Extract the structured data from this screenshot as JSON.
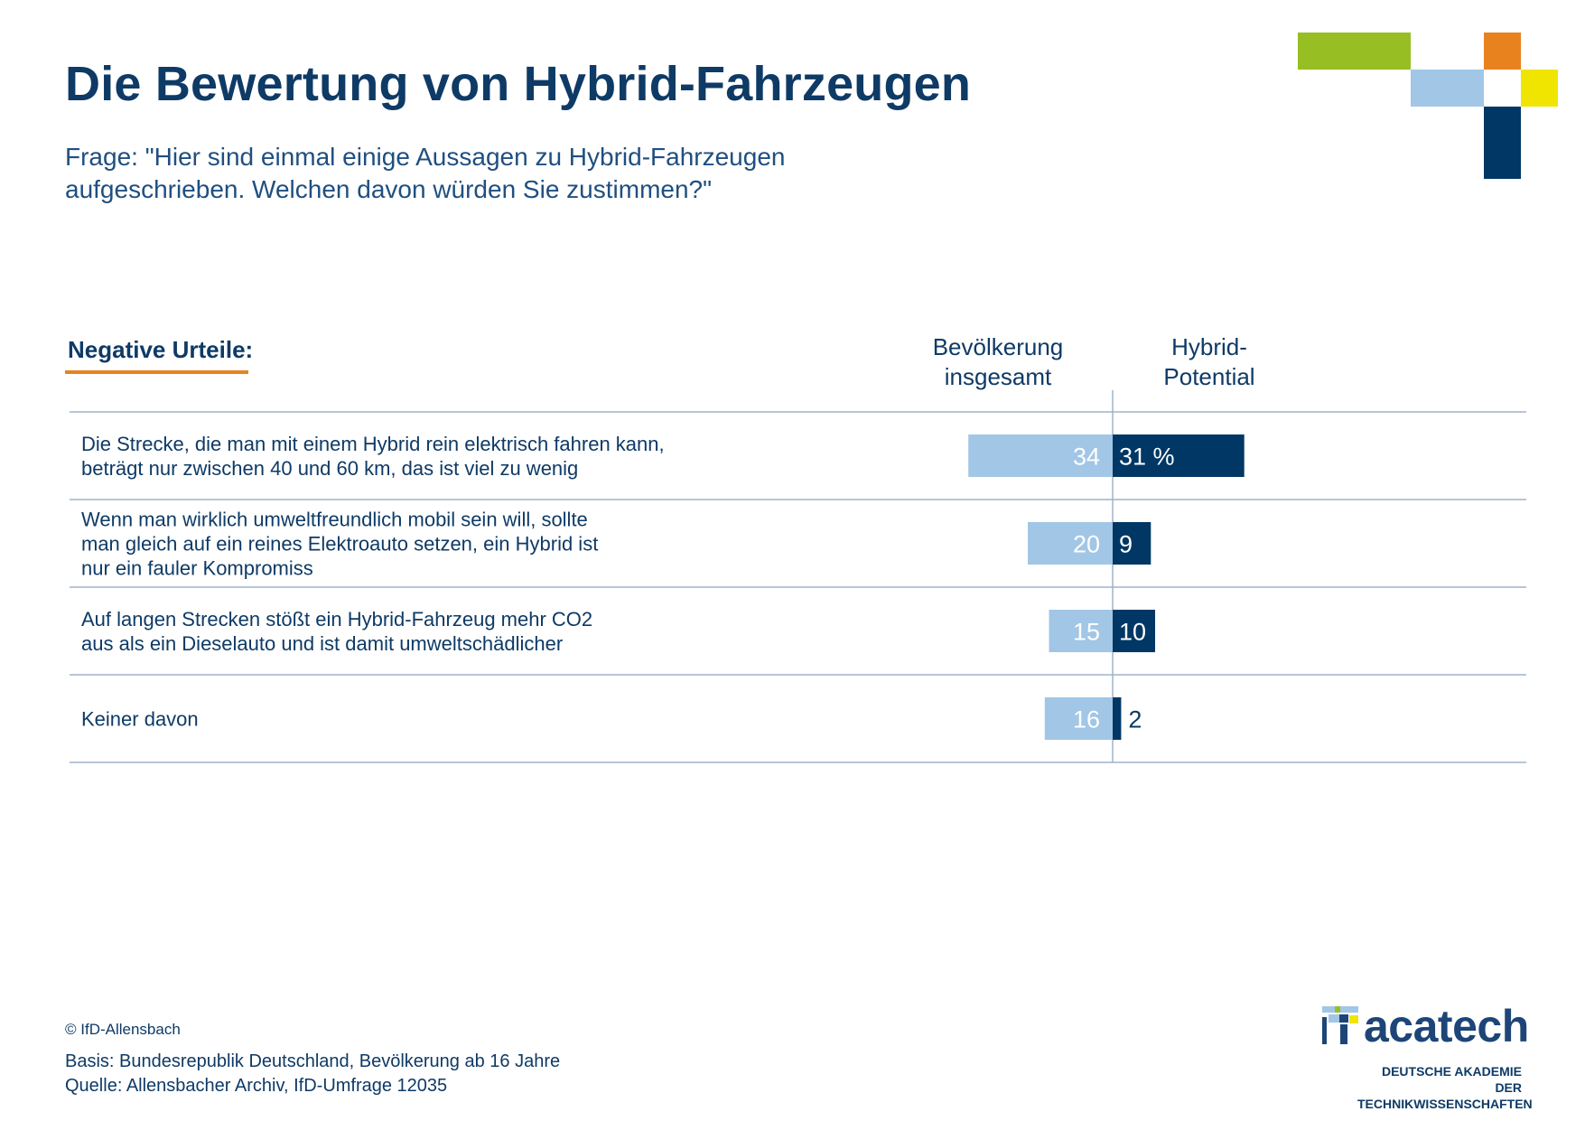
{
  "title": "Die Bewertung von Hybrid-Fahrzeugen",
  "question": "Frage: \"Hier sind einmal einige Aussagen zu Hybrid-Fahrzeugen aufgeschrieben. Welchen davon würden Sie zustimmen?\"",
  "question_lines": [
    "Frage: \"Hier sind einmal einige Aussagen zu Hybrid-Fahrzeugen",
    "aufgeschrieben. Welchen davon würden Sie zustimmen?\""
  ],
  "section_label": "Negative Urteile:",
  "column_headers": {
    "left": [
      "Bevölkerung",
      "insgesamt"
    ],
    "right": [
      "Hybrid-",
      "Potential"
    ]
  },
  "chart_data": {
    "type": "bar",
    "orientation": "horizontal-diverging",
    "unit": "%",
    "categories": [
      "Die Strecke, die man mit einem Hybrid rein elektrisch fahren kann, beträgt nur zwischen 40 und 60 km, das ist viel zu wenig",
      "Wenn man wirklich umweltfreundlich mobil sein will, sollte man gleich auf ein reines Elektroauto setzen, ein Hybrid ist nur ein fauler Kompromiss",
      "Auf langen Strecken stößt ein Hybrid-Fahrzeug mehr CO2 aus als ein Dieselauto und ist damit umweltschädlicher",
      "Keiner davon"
    ],
    "category_lines": [
      [
        "Die Strecke, die man mit einem Hybrid rein elektrisch fahren kann,",
        "beträgt nur zwischen 40 und 60 km, das ist viel zu wenig"
      ],
      [
        "Wenn man wirklich umweltfreundlich mobil sein will, sollte",
        "man gleich auf ein reines Elektroauto setzen, ein Hybrid ist",
        "nur ein fauler Kompromiss"
      ],
      [
        "Auf langen Strecken stößt ein Hybrid-Fahrzeug mehr CO2",
        "aus als ein Dieselauto und ist damit umweltschädlicher"
      ],
      [
        "Keiner davon"
      ]
    ],
    "series": [
      {
        "name": "Bevölkerung insgesamt",
        "values": [
          34,
          20,
          15,
          16
        ],
        "labels": [
          "34",
          "20",
          "15",
          "16"
        ],
        "color": "#a2c6e6"
      },
      {
        "name": "Hybrid-Potential",
        "values": [
          31,
          9,
          10,
          2
        ],
        "labels": [
          "31 %",
          "9",
          "10",
          "2"
        ],
        "color": "#003764"
      }
    ],
    "grid": true
  },
  "footer": {
    "copyright": "© IfD-Allensbach",
    "basis": "Basis: Bundesrepublik Deutschland, Bevölkerung ab 16 Jahre",
    "source": "Quelle: Allensbacher Archiv, IfD-Umfrage 12035"
  },
  "logo": {
    "name": "acatech",
    "subtitle_lines": [
      "DEUTSCHE AKADEMIE DER",
      "TECHNIKWISSENSCHAFTEN"
    ]
  },
  "colors": {
    "primary": "#003764",
    "light": "#a2c6e6",
    "accent_orange": "#e8821f",
    "accent_green": "#97be22",
    "accent_yellow": "#f0e500"
  }
}
